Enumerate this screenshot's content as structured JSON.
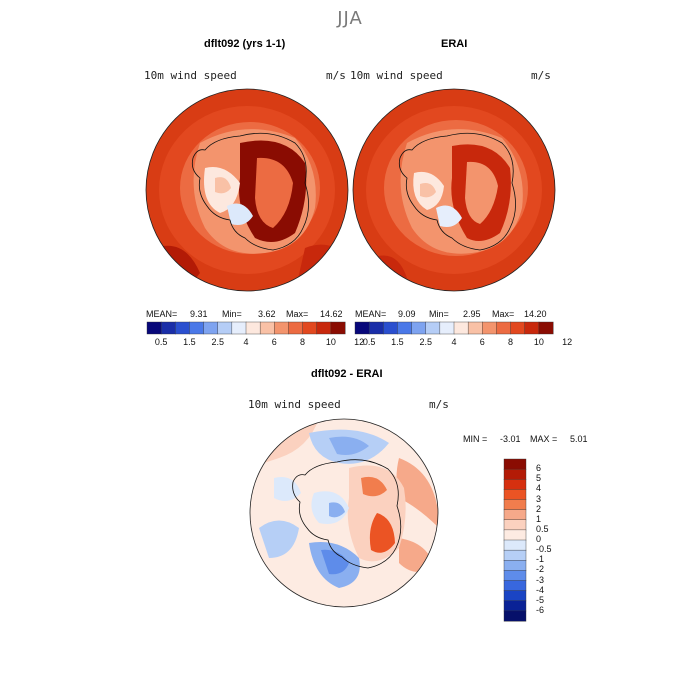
{
  "figure": {
    "season": "JJA",
    "left": {
      "title": "dflt092 (yrs 1-1)",
      "variable": "10m wind speed",
      "units": "m/s",
      "mean_label": "MEAN=",
      "mean": "9.31",
      "min_label": "Min=",
      "min": "3.62",
      "max_label": "Max=",
      "max": "14.62"
    },
    "right": {
      "title": "ERAI",
      "variable": "10m wind speed",
      "units": "m/s",
      "mean_label": "MEAN=",
      "mean": "9.09",
      "min_label": "Min=",
      "min": "2.95",
      "max_label": "Max=",
      "max": "14.20"
    },
    "diff": {
      "title": "dflt092 - ERAI",
      "variable": "10m wind speed",
      "units": "m/s",
      "min_label": "MIN =",
      "min": "-3.01",
      "max_label": "MAX =",
      "max": "5.01"
    }
  },
  "colorbar_top": {
    "ticks": [
      "0.5",
      "1.5",
      "2.5",
      "4",
      "6",
      "8",
      "10",
      "12"
    ],
    "colors": [
      "#08087a",
      "#1a2ea8",
      "#2a4fcf",
      "#4a78e8",
      "#7ea3f0",
      "#b5cdf6",
      "#e6eefc",
      "#fde8de",
      "#f9c1a6",
      "#f3946d",
      "#ec6b42",
      "#e2481f",
      "#c8280c",
      "#8a0c02"
    ]
  },
  "colorbar_diff": {
    "labels": [
      "6",
      "5",
      "4",
      "3",
      "2",
      "1",
      "0.5",
      "0",
      "-0.5",
      "-1",
      "-2",
      "-3",
      "-4",
      "-5",
      "-6"
    ],
    "colors": [
      "#8a0c02",
      "#b31b06",
      "#d6300f",
      "#eb5424",
      "#f17d4d",
      "#f6a98a",
      "#fbd1bf",
      "#fdebe2",
      "#dce9fb",
      "#b6cff6",
      "#8aaff0",
      "#5e8cea",
      "#3867de",
      "#1a44c4",
      "#0a2296",
      "#06106a"
    ]
  },
  "maps": {
    "left_colors": [
      "#d83c14",
      "#e2481f",
      "#ec6b42",
      "#f3946d",
      "#8a0c02",
      "#b31b06",
      "#fde8de"
    ],
    "right_colors": [
      "#d83c14",
      "#e2481f",
      "#ec6b42",
      "#f3946d",
      "#a81508",
      "#c8280c",
      "#fde8de"
    ],
    "diff_colors": [
      "#fdebe2",
      "#fbd1bf",
      "#b6cff6",
      "#8aaff0",
      "#5e8cea",
      "#f17d4d",
      "#eb5424",
      "#dce9fb"
    ]
  }
}
